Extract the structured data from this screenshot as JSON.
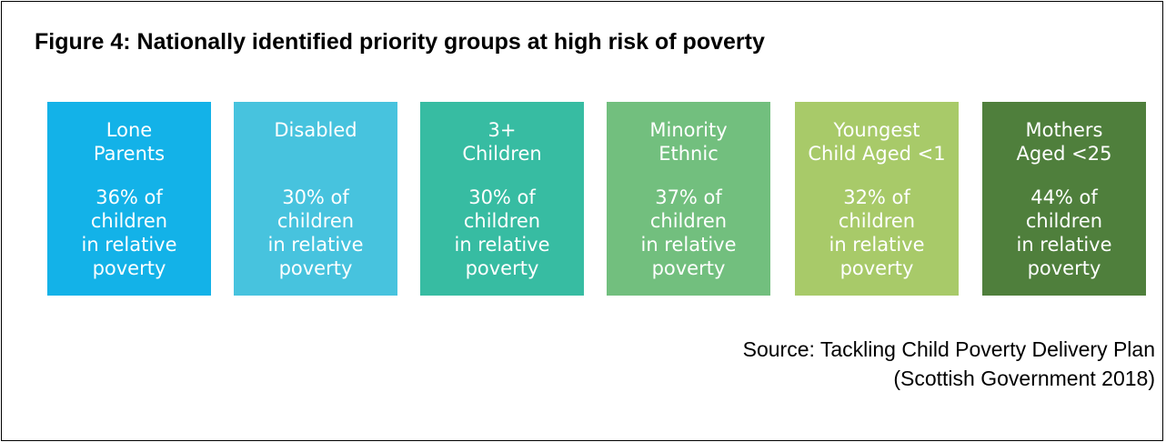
{
  "figure": {
    "title": "Figure 4:  Nationally identified priority groups at high risk of poverty"
  },
  "groups": [
    {
      "label": "Lone\nParents",
      "stat": "36% of\nchildren\nin relative\npoverty",
      "color": "#13b2e8"
    },
    {
      "label": "Disabled",
      "stat": "30% of\nchildren\nin relative\npoverty",
      "color": "#47c3de"
    },
    {
      "label": "3+\nChildren",
      "stat": "30% of\nchildren\nin relative\npoverty",
      "color": "#37bca2"
    },
    {
      "label": "Minority\nEthnic",
      "stat": "37% of\nchildren\nin relative\npoverty",
      "color": "#72bf7e"
    },
    {
      "label": "Youngest\nChild Aged <1",
      "stat": "32% of\nchildren\nin relative\npoverty",
      "color": "#a8ca69"
    },
    {
      "label": "Mothers\nAged <25",
      "stat": "44% of\nchildren\nin relative\npoverty",
      "color": "#4f7f3c"
    }
  ],
  "source": {
    "line1": "Source: Tackling Child Poverty Delivery Plan",
    "line2": "(Scottish Government 2018)"
  }
}
